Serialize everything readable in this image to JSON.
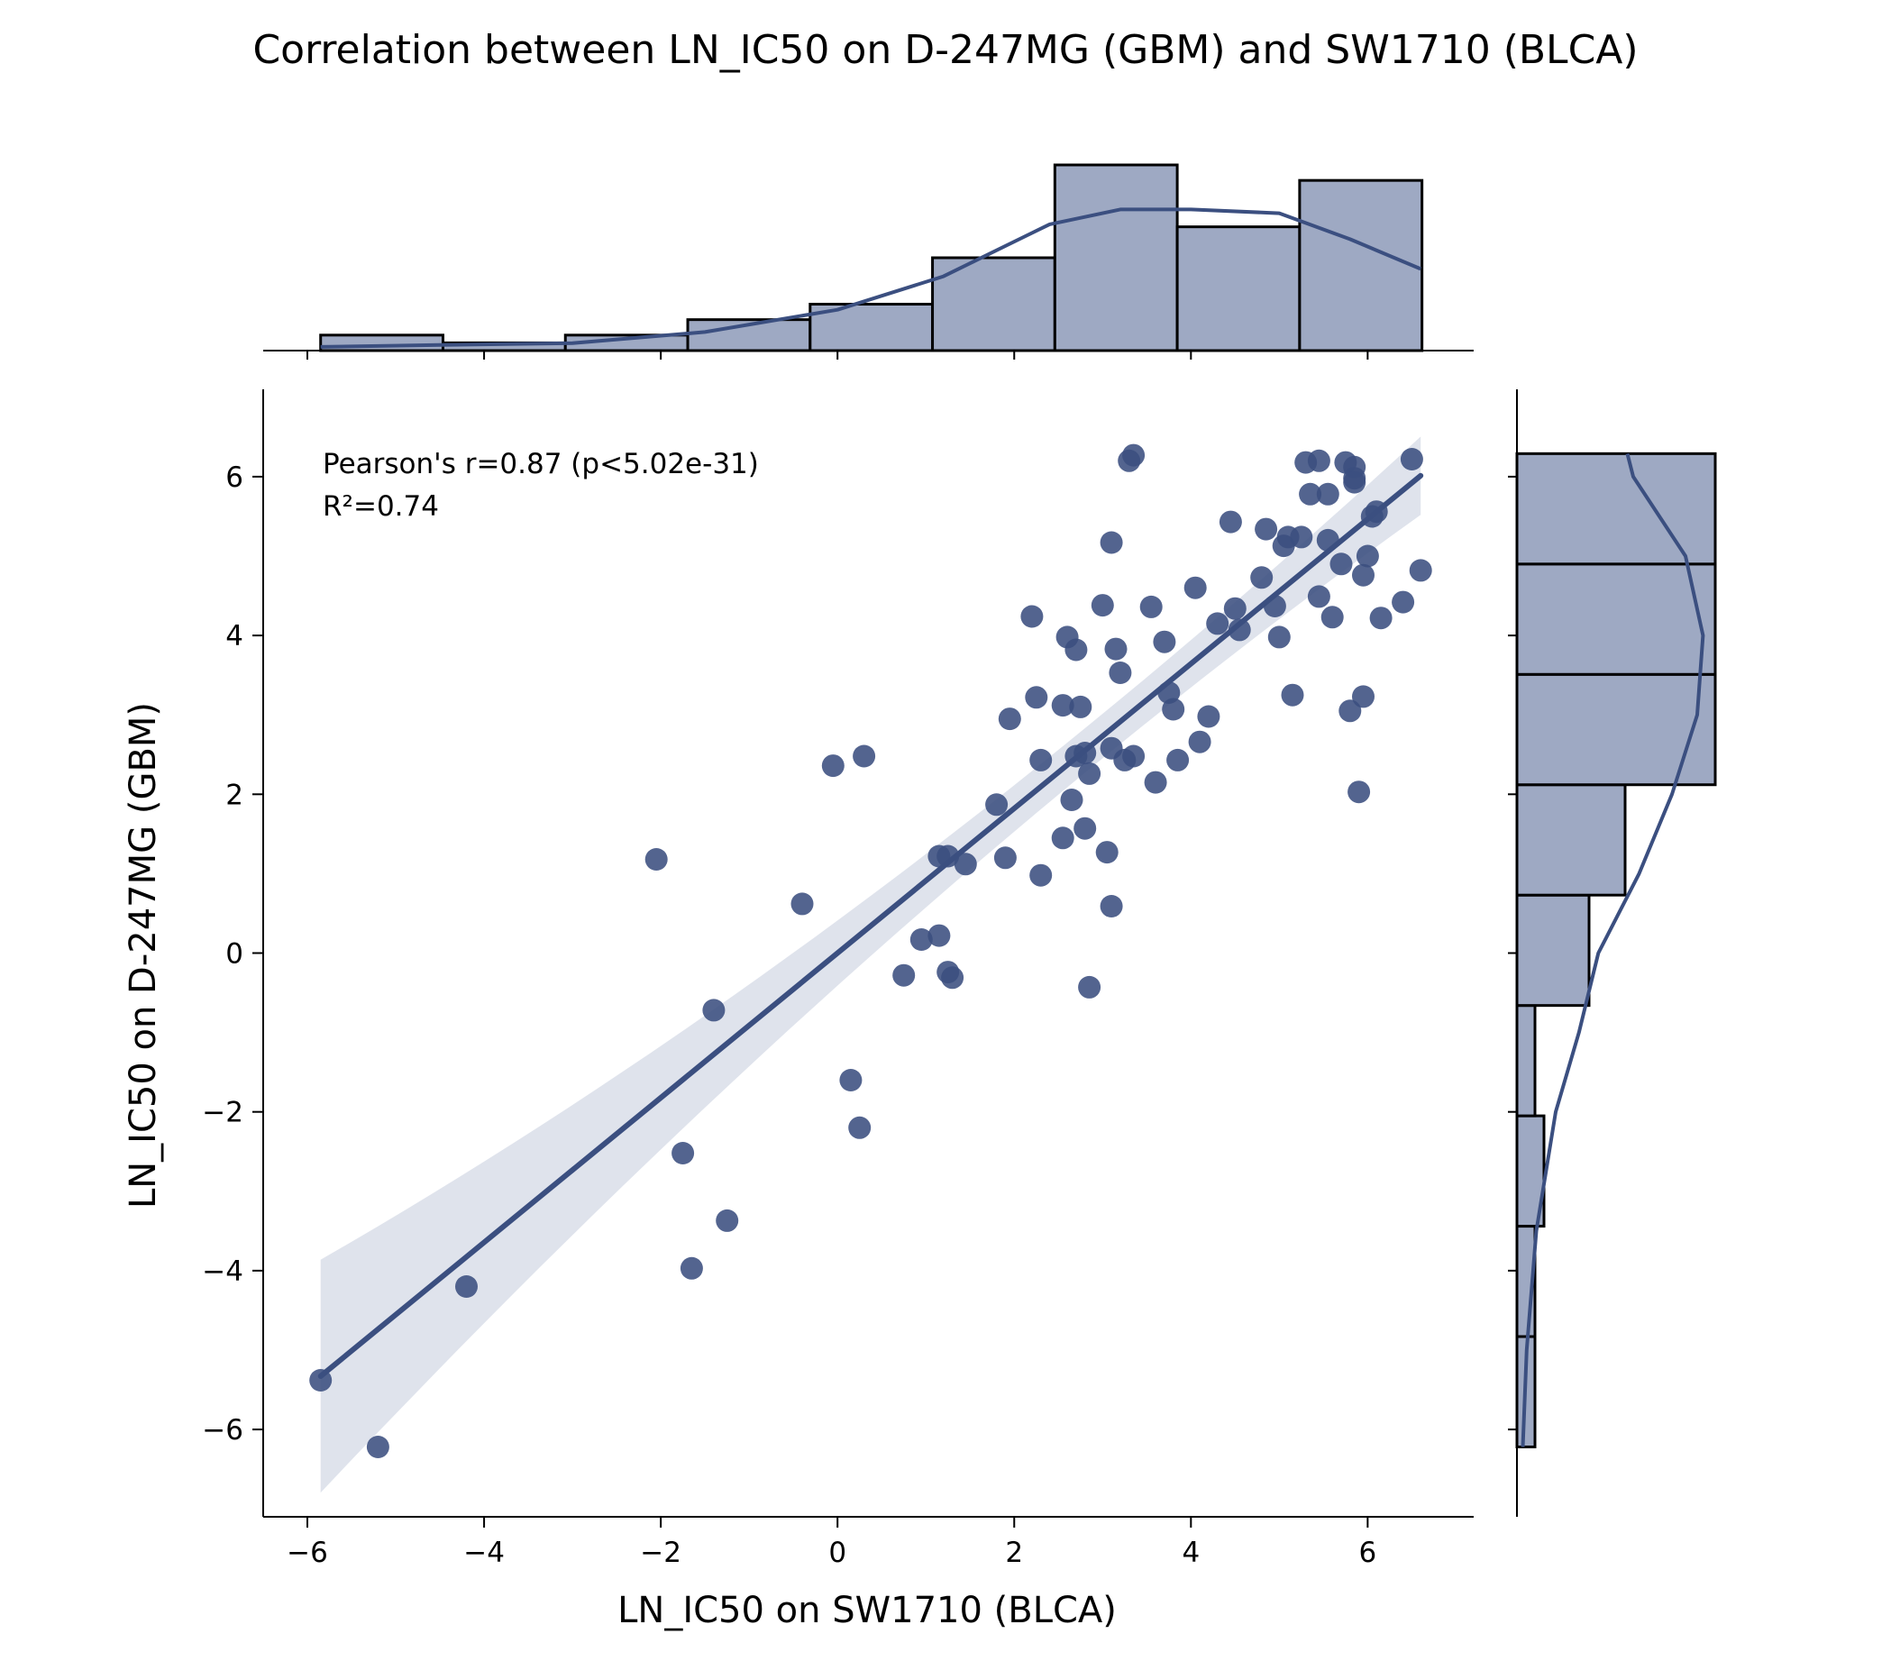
{
  "chart_data": {
    "type": "scatter",
    "title": "Correlation between LN_IC50 on D-247MG (GBM) and SW1710 (BLCA)",
    "xlabel": "LN_IC50 on SW1710 (BLCA)",
    "ylabel": "LN_IC50 on D-247MG (GBM)",
    "annotation_line1": "Pearson's r=0.87 (p<5.02e-31)",
    "annotation_line2": "R²=0.74",
    "xlim": [
      -6.5,
      7.2
    ],
    "ylim": [
      -7.1,
      7.1
    ],
    "xticks": [
      -6,
      -4,
      -2,
      0,
      2,
      4,
      6
    ],
    "yticks": [
      -6,
      -4,
      -2,
      0,
      2,
      4,
      6
    ],
    "xtick_labels": [
      "−6",
      "−4",
      "−2",
      "0",
      "2",
      "4",
      "6"
    ],
    "ytick_labels": [
      "−6",
      "−4",
      "−2",
      "0",
      "2",
      "4",
      "6"
    ],
    "color": "#3b4f80",
    "fill_color": "#9ea9c3",
    "band_color": "#dfe3ec",
    "grid": false,
    "legend": "none",
    "regression": {
      "slope": 0.911,
      "intercept": -0.0,
      "x_range": [
        -5.85,
        6.6
      ]
    },
    "points": [
      [
        -5.85,
        -5.38
      ],
      [
        -5.2,
        -6.22
      ],
      [
        -4.2,
        -4.2
      ],
      [
        -2.05,
        1.18
      ],
      [
        -1.75,
        -2.52
      ],
      [
        -1.65,
        -3.97
      ],
      [
        -1.4,
        -0.72
      ],
      [
        -1.25,
        -3.37
      ],
      [
        -0.4,
        0.62
      ],
      [
        -0.05,
        2.36
      ],
      [
        0.15,
        -1.6
      ],
      [
        0.25,
        -2.2
      ],
      [
        0.3,
        2.48
      ],
      [
        0.75,
        -0.28
      ],
      [
        0.95,
        0.17
      ],
      [
        1.15,
        0.22
      ],
      [
        1.15,
        1.22
      ],
      [
        1.25,
        1.22
      ],
      [
        1.25,
        -0.24
      ],
      [
        1.3,
        -0.31
      ],
      [
        1.45,
        1.12
      ],
      [
        1.8,
        1.87
      ],
      [
        1.9,
        1.2
      ],
      [
        1.95,
        2.95
      ],
      [
        2.2,
        4.24
      ],
      [
        2.25,
        3.22
      ],
      [
        2.3,
        2.43
      ],
      [
        2.3,
        0.98
      ],
      [
        2.55,
        1.45
      ],
      [
        2.55,
        3.12
      ],
      [
        2.6,
        3.98
      ],
      [
        2.65,
        1.93
      ],
      [
        2.7,
        3.82
      ],
      [
        2.7,
        2.48
      ],
      [
        2.75,
        3.1
      ],
      [
        2.8,
        2.52
      ],
      [
        2.8,
        1.57
      ],
      [
        2.85,
        2.26
      ],
      [
        2.85,
        -0.43
      ],
      [
        3.0,
        4.38
      ],
      [
        3.05,
        1.27
      ],
      [
        3.1,
        5.17
      ],
      [
        3.1,
        0.59
      ],
      [
        3.1,
        2.58
      ],
      [
        3.15,
        3.83
      ],
      [
        3.2,
        3.53
      ],
      [
        3.25,
        2.43
      ],
      [
        3.3,
        6.2
      ],
      [
        3.35,
        6.27
      ],
      [
        3.35,
        2.48
      ],
      [
        3.55,
        4.36
      ],
      [
        3.6,
        2.15
      ],
      [
        3.7,
        3.92
      ],
      [
        3.75,
        3.28
      ],
      [
        3.8,
        3.07
      ],
      [
        3.85,
        2.43
      ],
      [
        4.05,
        4.6
      ],
      [
        4.1,
        2.66
      ],
      [
        4.2,
        2.98
      ],
      [
        4.3,
        4.15
      ],
      [
        4.45,
        5.43
      ],
      [
        4.5,
        4.34
      ],
      [
        4.55,
        4.07
      ],
      [
        4.8,
        4.73
      ],
      [
        4.85,
        5.34
      ],
      [
        4.95,
        4.37
      ],
      [
        5.0,
        3.98
      ],
      [
        5.05,
        5.13
      ],
      [
        5.1,
        5.24
      ],
      [
        5.15,
        3.25
      ],
      [
        5.25,
        5.24
      ],
      [
        5.3,
        6.18
      ],
      [
        5.35,
        5.78
      ],
      [
        5.45,
        6.2
      ],
      [
        5.45,
        4.49
      ],
      [
        5.55,
        5.78
      ],
      [
        5.55,
        5.2
      ],
      [
        5.6,
        4.23
      ],
      [
        5.7,
        4.9
      ],
      [
        5.75,
        6.18
      ],
      [
        5.8,
        3.05
      ],
      [
        5.85,
        6.12
      ],
      [
        5.85,
        5.98
      ],
      [
        5.85,
        5.93
      ],
      [
        5.9,
        2.03
      ],
      [
        5.95,
        3.23
      ],
      [
        5.95,
        4.76
      ],
      [
        6.0,
        5.0
      ],
      [
        6.05,
        5.5
      ],
      [
        6.1,
        5.56
      ],
      [
        6.15,
        4.22
      ],
      [
        6.4,
        4.42
      ],
      [
        6.5,
        6.22
      ],
      [
        6.6,
        4.82
      ]
    ],
    "x_hist": {
      "bin_edges": [
        -5.85,
        -4.465,
        -3.08,
        -1.695,
        -0.31,
        1.075,
        2.46,
        3.845,
        5.23,
        6.615
      ],
      "counts": [
        1,
        0.5,
        1,
        2,
        3,
        6,
        12,
        8,
        11
      ]
    },
    "y_hist": {
      "bin_edges": [
        -6.22,
        -4.83,
        -3.44,
        -2.05,
        -0.66,
        0.73,
        2.12,
        3.51,
        4.9,
        6.29
      ],
      "counts": [
        1,
        1,
        1.5,
        1,
        4,
        6,
        11,
        11,
        11
      ]
    },
    "x_kde": [
      [
        -5.85,
        0.02
      ],
      [
        -4.5,
        0.03
      ],
      [
        -3.0,
        0.04
      ],
      [
        -1.5,
        0.1
      ],
      [
        0.0,
        0.22
      ],
      [
        1.2,
        0.4
      ],
      [
        2.4,
        0.68
      ],
      [
        3.2,
        0.76
      ],
      [
        4.0,
        0.76
      ],
      [
        5.0,
        0.74
      ],
      [
        5.8,
        0.6
      ],
      [
        6.6,
        0.44
      ]
    ],
    "y_kde": [
      [
        -6.22,
        0.03
      ],
      [
        -5.0,
        0.05
      ],
      [
        -3.5,
        0.1
      ],
      [
        -2.0,
        0.2
      ],
      [
        -1.0,
        0.32
      ],
      [
        0.0,
        0.42
      ],
      [
        1.0,
        0.63
      ],
      [
        2.0,
        0.8
      ],
      [
        3.0,
        0.93
      ],
      [
        4.0,
        0.96
      ],
      [
        5.0,
        0.87
      ],
      [
        6.0,
        0.6
      ],
      [
        6.29,
        0.57
      ]
    ]
  }
}
